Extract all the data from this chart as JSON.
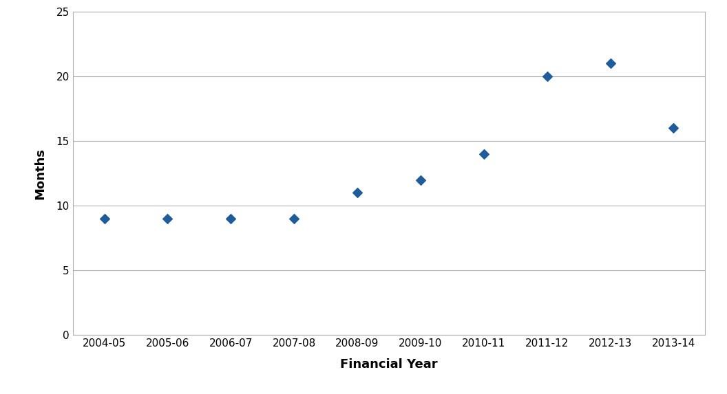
{
  "categories": [
    "2004-05",
    "2005-06",
    "2006-07",
    "2007-08",
    "2008-09",
    "2009-10",
    "2010-11",
    "2011-12",
    "2012-13",
    "2013-14"
  ],
  "values": [
    9,
    9,
    9,
    9,
    11,
    12,
    14,
    20,
    21,
    16
  ],
  "xlabel": "Financial Year",
  "ylabel": "Months",
  "ylim": [
    0,
    25
  ],
  "yticks": [
    0,
    5,
    10,
    15,
    20,
    25
  ],
  "marker_color": "#1F5C99",
  "marker": "D",
  "marker_size": 7,
  "background_color": "#ffffff",
  "grid_color": "#b0b0b0",
  "xlabel_fontsize": 13,
  "ylabel_fontsize": 13,
  "tick_fontsize": 11,
  "spine_color": "#b0b0b0"
}
